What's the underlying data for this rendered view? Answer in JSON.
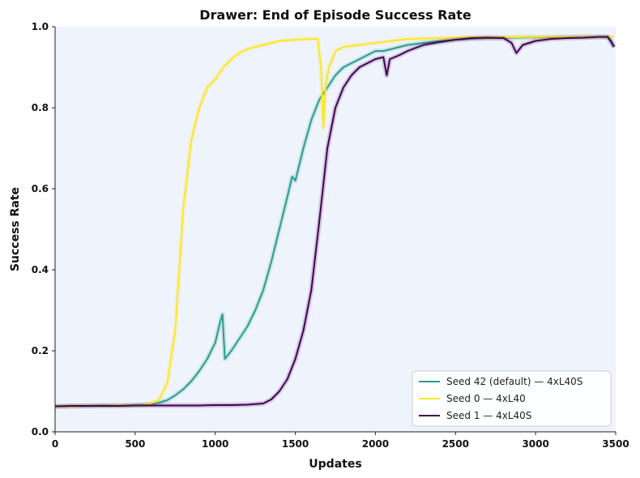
{
  "chart_data": {
    "type": "line",
    "title": "Drawer: End of Episode Success Rate",
    "xlabel": "Updates",
    "ylabel": "Success Rate",
    "xlim": [
      0,
      3500
    ],
    "ylim": [
      0,
      1.0
    ],
    "xticks": [
      0,
      500,
      1000,
      1500,
      2000,
      2500,
      3000,
      3500
    ],
    "xtick_labels": [
      "0",
      "500",
      "1000",
      "1500",
      "2000",
      "2500",
      "3000",
      "3500"
    ],
    "yticks": [
      0,
      0.2,
      0.4,
      0.6,
      0.8,
      1.0
    ],
    "ytick_labels": [
      "0.0",
      "0.2",
      "0.4",
      "0.6",
      "0.8",
      "1.0"
    ],
    "grid": false,
    "plot_background": "#eef3fc",
    "legend_position": "lower-right",
    "series": [
      {
        "name": "Seed 42 (default) — 4xL40S",
        "color": "#2a9d8f",
        "x": [
          0,
          100,
          200,
          300,
          400,
          500,
          600,
          650,
          700,
          750,
          800,
          850,
          900,
          950,
          1000,
          1030,
          1045,
          1060,
          1080,
          1100,
          1150,
          1200,
          1250,
          1300,
          1350,
          1400,
          1450,
          1480,
          1500,
          1550,
          1600,
          1650,
          1700,
          1750,
          1800,
          1850,
          1900,
          1950,
          2000,
          2050,
          2100,
          2150,
          2200,
          2300,
          2400,
          2500,
          2600,
          2700,
          2800,
          2900,
          3000,
          3100,
          3200,
          3300,
          3400,
          3450,
          3490
        ],
        "y": [
          0.062,
          0.063,
          0.064,
          0.065,
          0.065,
          0.066,
          0.068,
          0.072,
          0.078,
          0.09,
          0.105,
          0.125,
          0.15,
          0.18,
          0.22,
          0.27,
          0.29,
          0.18,
          0.19,
          0.2,
          0.23,
          0.26,
          0.3,
          0.35,
          0.42,
          0.5,
          0.58,
          0.63,
          0.62,
          0.7,
          0.77,
          0.82,
          0.85,
          0.88,
          0.9,
          0.91,
          0.92,
          0.93,
          0.94,
          0.94,
          0.945,
          0.95,
          0.955,
          0.96,
          0.965,
          0.968,
          0.97,
          0.972,
          0.972,
          0.973,
          0.974,
          0.974,
          0.975,
          0.975,
          0.975,
          0.974,
          0.95
        ]
      },
      {
        "name": "Seed 0 — 4xL40",
        "color": "#fde725",
        "x": [
          0,
          100,
          200,
          300,
          400,
          500,
          550,
          600,
          650,
          700,
          750,
          800,
          850,
          900,
          950,
          1000,
          1050,
          1100,
          1150,
          1200,
          1300,
          1400,
          1500,
          1600,
          1640,
          1660,
          1675,
          1690,
          1710,
          1750,
          1800,
          1900,
          2000,
          2100,
          2200,
          2400,
          2600,
          2800,
          3000,
          3200,
          3400,
          3490
        ],
        "y": [
          0.062,
          0.063,
          0.064,
          0.064,
          0.065,
          0.065,
          0.066,
          0.07,
          0.08,
          0.12,
          0.25,
          0.55,
          0.72,
          0.8,
          0.85,
          0.87,
          0.9,
          0.92,
          0.935,
          0.945,
          0.955,
          0.965,
          0.968,
          0.97,
          0.97,
          0.9,
          0.75,
          0.86,
          0.9,
          0.94,
          0.95,
          0.955,
          0.96,
          0.965,
          0.97,
          0.972,
          0.974,
          0.974,
          0.975,
          0.975,
          0.975,
          0.975
        ]
      },
      {
        "name": "Seed 1 — 4xL40S",
        "color": "#440154",
        "x": [
          0,
          100,
          200,
          300,
          400,
          500,
          600,
          700,
          800,
          900,
          1000,
          1100,
          1200,
          1300,
          1350,
          1400,
          1450,
          1500,
          1550,
          1600,
          1650,
          1700,
          1750,
          1800,
          1850,
          1900,
          1950,
          2000,
          2050,
          2070,
          2090,
          2150,
          2200,
          2300,
          2400,
          2500,
          2600,
          2700,
          2800,
          2850,
          2880,
          2920,
          3000,
          3100,
          3200,
          3300,
          3400,
          3450,
          3470,
          3490
        ],
        "y": [
          0.063,
          0.064,
          0.064,
          0.064,
          0.064,
          0.065,
          0.065,
          0.065,
          0.065,
          0.065,
          0.066,
          0.066,
          0.067,
          0.07,
          0.08,
          0.1,
          0.13,
          0.18,
          0.25,
          0.35,
          0.52,
          0.7,
          0.8,
          0.85,
          0.88,
          0.9,
          0.91,
          0.92,
          0.925,
          0.88,
          0.92,
          0.93,
          0.94,
          0.955,
          0.962,
          0.968,
          0.972,
          0.973,
          0.972,
          0.96,
          0.935,
          0.955,
          0.965,
          0.97,
          0.972,
          0.973,
          0.975,
          0.975,
          0.965,
          0.95
        ]
      }
    ]
  }
}
